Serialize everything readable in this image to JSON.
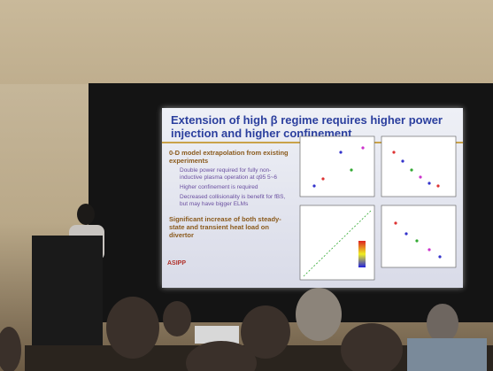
{
  "slide": {
    "title": "Extension of high β regime requires higher power injection and higher confinement",
    "bullets": [
      {
        "text": "0-D model extrapolation from existing experiments",
        "subitems": [
          "Double power required for fully non-inductive plasma operation at q95 5~6",
          "Higher confinement is required",
          "Decreased collisionality is benefit for fBS, but may have bigger ELMs"
        ]
      },
      {
        "text": "Significant increase of both steady-state and transient heat load on divertor"
      }
    ],
    "logo": "ASIPP"
  }
}
